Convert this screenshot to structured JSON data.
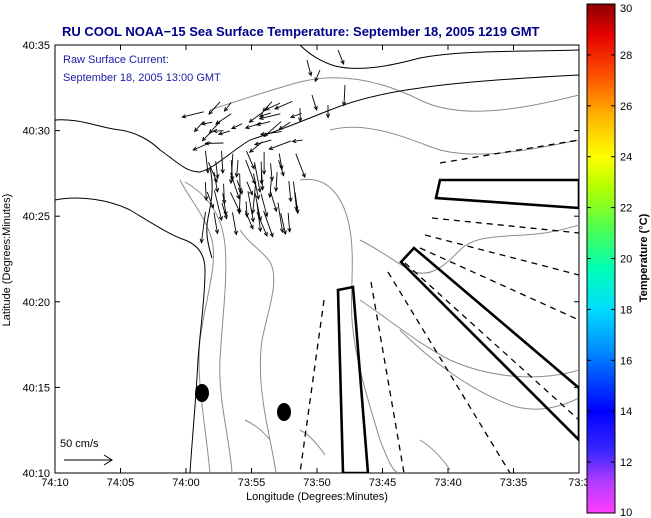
{
  "title": "RU COOL  NOAA−15  Sea Surface Temperature:  September 18, 2005 1219 GMT",
  "legend": {
    "line1": "Raw Surface Current:",
    "line2": "September 18, 2005 13:00 GMT",
    "scale_label": "50 cm/s"
  },
  "axes": {
    "xlabel": "Longitude (Degrees:Minutes)",
    "ylabel": "Latitude (Degrees:Minutes)",
    "xticks": [
      "74:10",
      "74:05",
      "74:00",
      "73:55",
      "73:50",
      "73:45",
      "73:40",
      "73:35",
      "73:3"
    ],
    "yticks": [
      "40:35",
      "40:30",
      "40:25",
      "40:20",
      "40:15",
      "40:10"
    ]
  },
  "colorbar": {
    "label": "Temperature (°C)",
    "ticks": [
      "30",
      "28",
      "26",
      "24",
      "22",
      "20",
      "18",
      "16",
      "14",
      "12",
      "10"
    ],
    "min": 10,
    "max": 30
  },
  "colors": {
    "title": "#00008b",
    "legend": "#1a1aa6"
  }
}
